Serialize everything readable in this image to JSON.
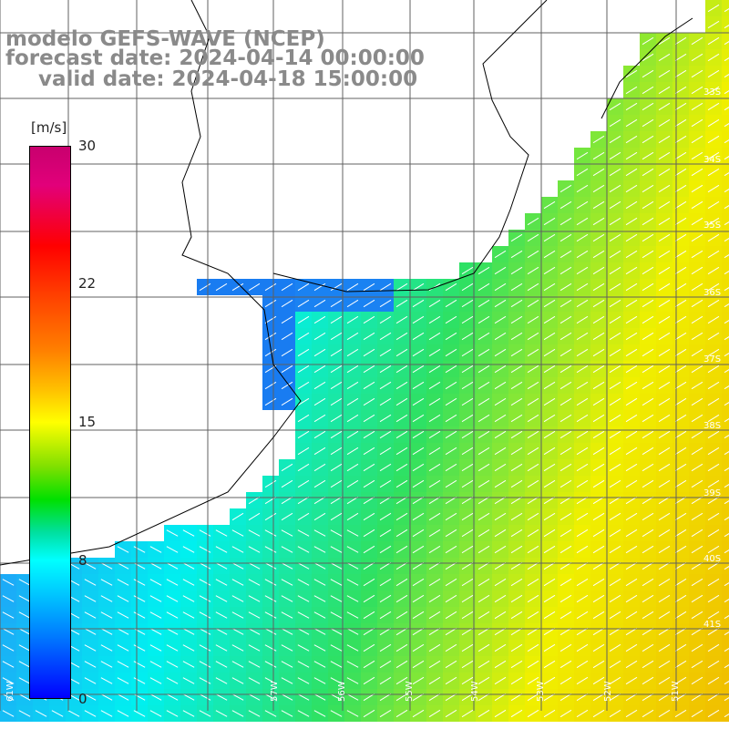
{
  "title": {
    "model": "modelo GEFS-WAVE (NCEP)",
    "forecast": "forecast date: 2024-04-14 00:00:00",
    "valid": "valid date: 2024-04-18 15:00:00"
  },
  "colorbar": {
    "unit": "[m/s]",
    "ticks": [
      "30",
      "22",
      "15",
      "8",
      "0"
    ],
    "tick_values": [
      30,
      22,
      15,
      8,
      0
    ],
    "colors": [
      "#0000ff",
      "#0078ff",
      "#00c8ff",
      "#00ffff",
      "#00e0a0",
      "#00e000",
      "#80e000",
      "#ffff00",
      "#ffc000",
      "#ff8000",
      "#ff4000",
      "#ff0000",
      "#c8006e"
    ]
  },
  "lat_labels": [
    "33S",
    "34S",
    "35S",
    "36S",
    "37S",
    "38S",
    "39S",
    "40S",
    "41S"
  ],
  "lon_labels": [
    "61W",
    "57W",
    "56W",
    "55W",
    "54W",
    "53W",
    "52W",
    "51W"
  ],
  "field_colors": {
    "coast_blue": "#1878f0",
    "mid_blue": "#20a0f8",
    "cyan": "#00f0f0",
    "green": "#30e060",
    "yellow": "#f0f000",
    "orange": "#f0c000",
    "land": "#ffffff"
  }
}
